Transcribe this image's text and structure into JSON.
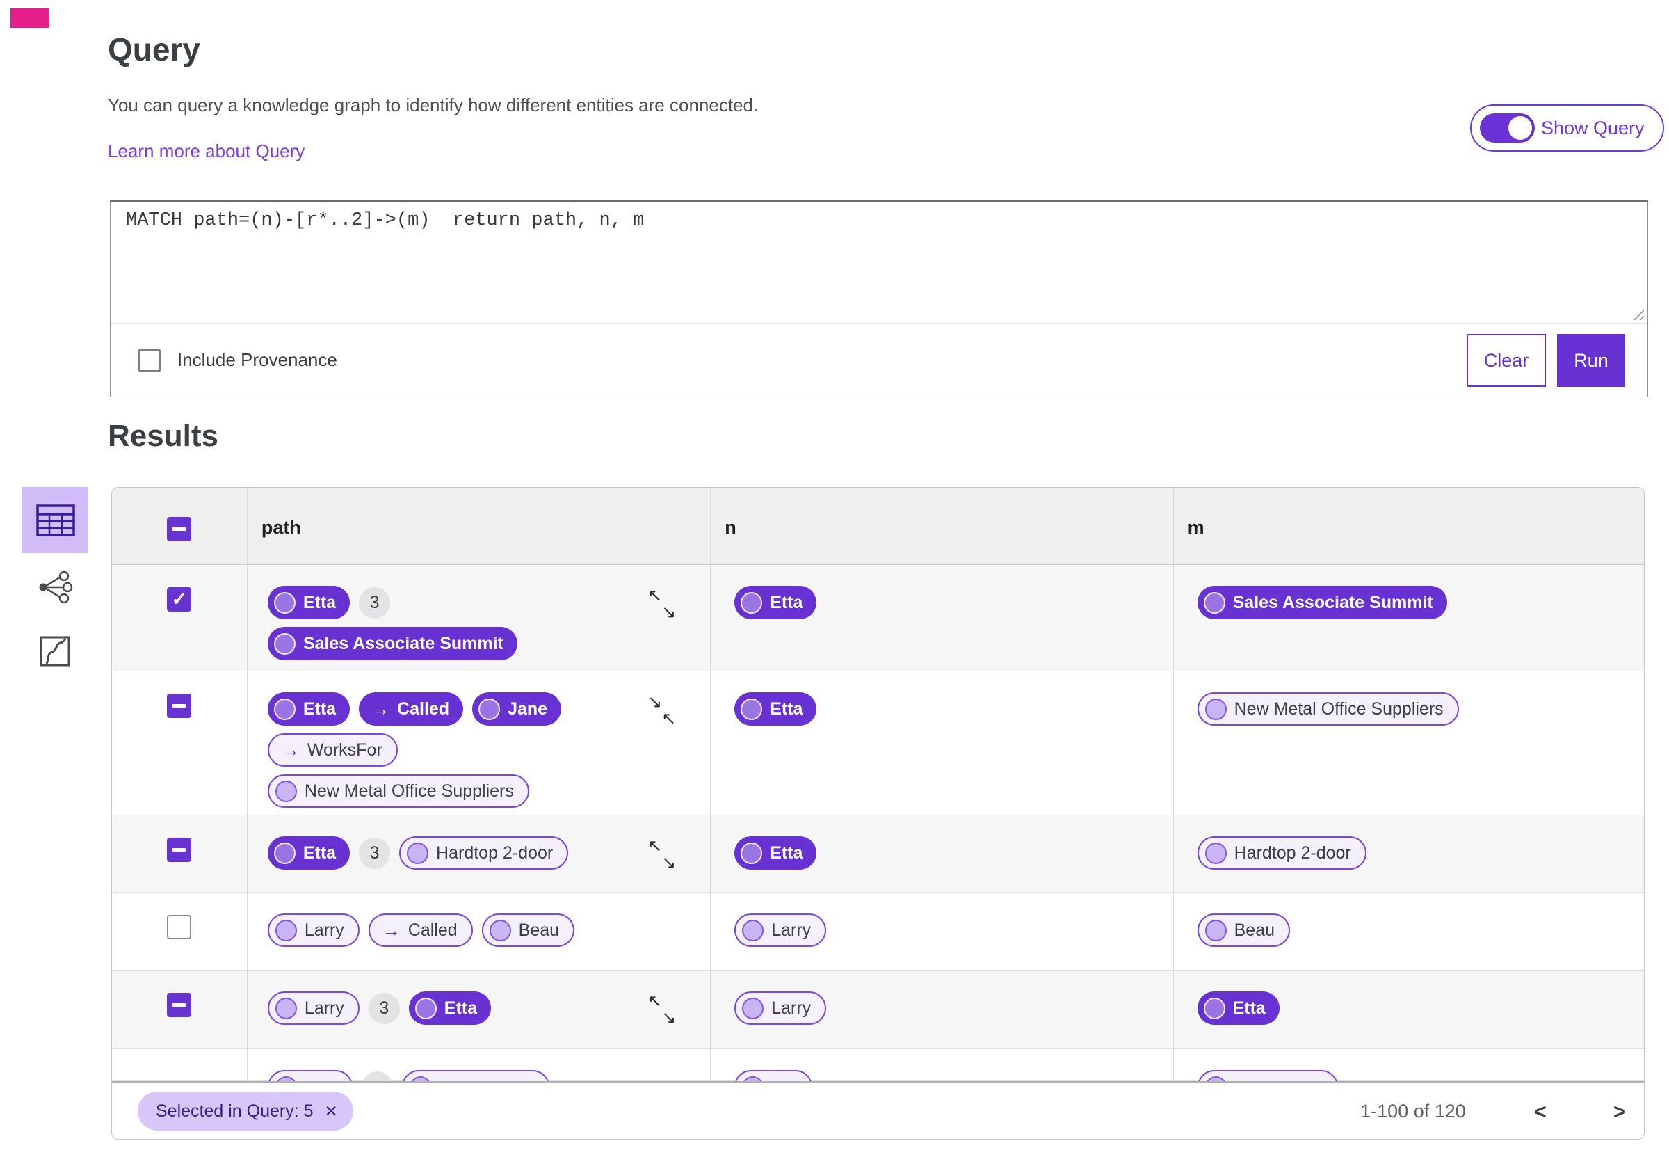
{
  "colors": {
    "accent": "#6733d1",
    "accent_light_bg": "#d1bcf8",
    "outlined_pill_bg": "#f4f0fc",
    "outlined_pill_border": "#7a47e0",
    "chip_bg": "#d9c6f9",
    "indicator": "#e61e8c",
    "header_bg": "#efefef",
    "stripe_bg": "#f6f6f6"
  },
  "icons": {
    "check": "✓",
    "arrow_right": "→",
    "expand_nw": "↖",
    "expand_se": "↘",
    "close": "✕",
    "chevron_left": "<",
    "chevron_right": ">"
  },
  "query_section": {
    "title": "Query",
    "description": "You can query a knowledge graph to identify how different entities are connected.",
    "learn_more": "Learn more about Query",
    "show_query_label": "Show Query",
    "show_query_on": true,
    "query_text": "MATCH path=(n)-[r*..2]->(m)  return path, n, m",
    "include_provenance_label": "Include Provenance",
    "include_provenance_checked": false,
    "clear_label": "Clear",
    "run_label": "Run"
  },
  "sidebar": {
    "items": [
      {
        "id": "table-view",
        "selected": true
      },
      {
        "id": "graph-view",
        "selected": false
      },
      {
        "id": "map-view",
        "selected": false
      }
    ]
  },
  "results_section": {
    "title": "Results",
    "columns": [
      "path",
      "n",
      "m"
    ],
    "rows": [
      {
        "checkbox": "checked",
        "expander": "expand",
        "path": [
          [
            {
              "t": "node",
              "v": "filled",
              "label": "Etta"
            },
            {
              "t": "badge",
              "label": "3"
            }
          ],
          [
            {
              "t": "node",
              "v": "filled",
              "label": "Sales Associate Summit"
            }
          ]
        ],
        "n": [
          [
            {
              "t": "node",
              "v": "filled",
              "label": "Etta"
            }
          ]
        ],
        "m": [
          [
            {
              "t": "node",
              "v": "filled",
              "label": "Sales Associate Summit"
            }
          ]
        ]
      },
      {
        "checkbox": "indeterminate",
        "expander": "collapse",
        "path": [
          [
            {
              "t": "node",
              "v": "filled",
              "label": "Etta"
            },
            {
              "t": "edge",
              "v": "filled",
              "label": "Called"
            },
            {
              "t": "node",
              "v": "filled",
              "label": "Jane"
            }
          ],
          [
            {
              "t": "edge",
              "v": "outlined",
              "label": "WorksFor"
            }
          ],
          [
            {
              "t": "node",
              "v": "outlined",
              "label": "New Metal Office Suppliers"
            }
          ]
        ],
        "n": [
          [
            {
              "t": "node",
              "v": "filled",
              "label": "Etta"
            }
          ]
        ],
        "m": [
          [
            {
              "t": "node",
              "v": "outlined",
              "label": "New Metal Office Suppliers"
            }
          ]
        ]
      },
      {
        "checkbox": "indeterminate",
        "expander": "expand",
        "path": [
          [
            {
              "t": "node",
              "v": "filled",
              "label": "Etta"
            },
            {
              "t": "badge",
              "label": "3"
            },
            {
              "t": "node",
              "v": "outlined",
              "label": "Hardtop 2-door"
            }
          ]
        ],
        "n": [
          [
            {
              "t": "node",
              "v": "filled",
              "label": "Etta"
            }
          ]
        ],
        "m": [
          [
            {
              "t": "node",
              "v": "outlined",
              "label": "Hardtop 2-door"
            }
          ]
        ]
      },
      {
        "checkbox": "unchecked",
        "expander": null,
        "path": [
          [
            {
              "t": "node",
              "v": "outlined",
              "label": "Larry"
            },
            {
              "t": "edge",
              "v": "outlined",
              "label": "Called"
            },
            {
              "t": "node",
              "v": "outlined",
              "label": "Beau"
            }
          ]
        ],
        "n": [
          [
            {
              "t": "node",
              "v": "outlined",
              "label": "Larry"
            }
          ]
        ],
        "m": [
          [
            {
              "t": "node",
              "v": "outlined",
              "label": "Beau"
            }
          ]
        ]
      },
      {
        "checkbox": "indeterminate",
        "expander": "expand",
        "path": [
          [
            {
              "t": "node",
              "v": "outlined",
              "label": "Larry"
            },
            {
              "t": "badge",
              "label": "3"
            },
            {
              "t": "node",
              "v": "filled",
              "label": "Etta"
            }
          ]
        ],
        "n": [
          [
            {
              "t": "node",
              "v": "outlined",
              "label": "Larry"
            }
          ]
        ],
        "m": [
          [
            {
              "t": "node",
              "v": "filled",
              "label": "Etta"
            }
          ]
        ]
      },
      {
        "checkbox": null,
        "expander": null,
        "clipped": true,
        "path": [
          [
            {
              "t": "node",
              "v": "outlined",
              "label": ""
            },
            {
              "t": "badge",
              "label": ""
            },
            {
              "t": "node",
              "v": "outlined",
              "label": ""
            }
          ]
        ],
        "n": [
          [
            {
              "t": "node",
              "v": "outlined",
              "label": ""
            }
          ]
        ],
        "m": [
          [
            {
              "t": "node",
              "v": "outlined",
              "label": ""
            }
          ]
        ]
      }
    ],
    "footer": {
      "chip_label": "Selected in Query: 5",
      "range_label": "1-100 of 120"
    }
  }
}
